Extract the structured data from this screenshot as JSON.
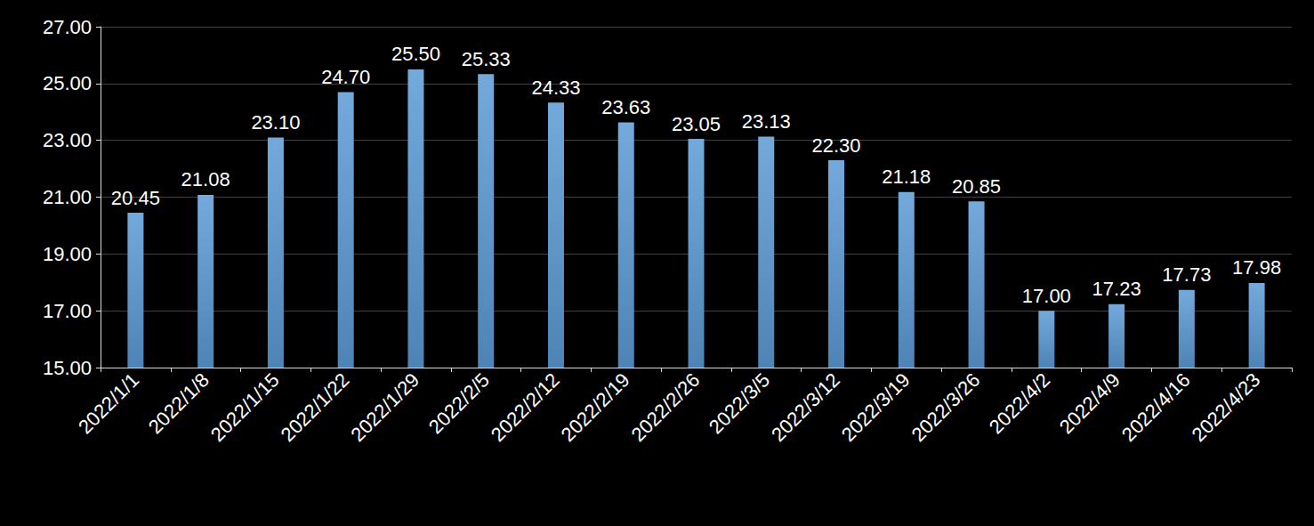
{
  "chart_data": {
    "type": "bar",
    "categories": [
      "2022/1/1",
      "2022/1/8",
      "2022/1/15",
      "2022/1/22",
      "2022/1/29",
      "2022/2/5",
      "2022/2/12",
      "2022/2/19",
      "2022/2/26",
      "2022/3/5",
      "2022/3/12",
      "2022/3/19",
      "2022/3/26",
      "2022/4/2",
      "2022/4/9",
      "2022/4/16",
      "2022/4/23"
    ],
    "values": [
      20.45,
      21.08,
      23.1,
      24.7,
      25.5,
      25.33,
      24.33,
      23.63,
      23.05,
      23.13,
      22.3,
      21.18,
      20.85,
      17.0,
      17.23,
      17.73,
      17.98
    ],
    "value_labels": [
      "20.45",
      "21.08",
      "23.10",
      "24.70",
      "25.50",
      "25.33",
      "24.33",
      "23.63",
      "23.05",
      "23.13",
      "22.30",
      "21.18",
      "20.85",
      "17.00",
      "17.23",
      "17.73",
      "17.98"
    ],
    "color": "#5b9bd5",
    "ylim": [
      15,
      27
    ],
    "yticks": [
      {
        "value": 15,
        "label": "15.00"
      },
      {
        "value": 17,
        "label": "17.00"
      },
      {
        "value": 19,
        "label": "19.00"
      },
      {
        "value": 21,
        "label": "21.00"
      },
      {
        "value": 23,
        "label": "23.00"
      },
      {
        "value": 25,
        "label": "25.00"
      },
      {
        "value": 27,
        "label": "27.00"
      }
    ],
    "grid": true,
    "data_labels": true
  }
}
